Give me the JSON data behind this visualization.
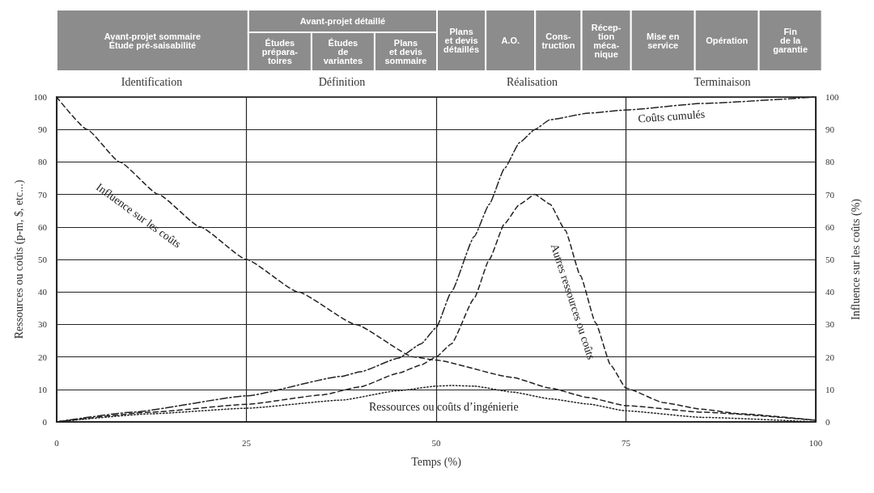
{
  "chart_data": {
    "type": "line",
    "xlabel": "Temps (%)",
    "ylabel": "Ressources ou coûts (p-m, $, etc...)",
    "y2label": "Influence sur les coûts (%)",
    "xlim": [
      0,
      100
    ],
    "xticks": [
      0,
      25,
      50,
      75,
      100
    ],
    "ylim": [
      0,
      100
    ],
    "yticks": [
      0,
      10,
      20,
      30,
      40,
      50,
      60,
      70,
      80,
      90,
      100
    ],
    "y2lim": [
      0,
      100
    ],
    "y2ticks": [
      0,
      10,
      20,
      30,
      40,
      50,
      60,
      70,
      80,
      90,
      100
    ],
    "grid": true,
    "series": [
      {
        "name": "Influence sur les coûts",
        "color": "#222222",
        "axis": "y2",
        "line_style": "dashed",
        "x": [
          0,
          4,
          8.3,
          13.4,
          18.9,
          25,
          31.8,
          39.4,
          47,
          50,
          60,
          65,
          70,
          75,
          85,
          100
        ],
        "values": [
          100,
          90,
          80,
          70,
          60,
          50,
          40,
          30,
          20,
          19,
          13.7,
          10.4,
          7.5,
          5,
          3,
          0.5
        ]
      },
      {
        "name": "Coûts cumulés",
        "color": "#222222",
        "line_style": "dashdot",
        "x": [
          0,
          10,
          25,
          37.5,
          40,
          45,
          48,
          50,
          52,
          55,
          57,
          59,
          61,
          63,
          65,
          70,
          75,
          85,
          100
        ],
        "values": [
          0,
          3,
          8,
          14,
          15.4,
          19.6,
          24,
          29,
          40,
          57,
          67,
          78,
          86,
          90,
          93,
          95,
          96,
          98,
          100
        ]
      },
      {
        "name": "Autres ressources ou coûts",
        "color": "#222222",
        "line_style": "dashed",
        "x": [
          0,
          12.5,
          25,
          35,
          40,
          45,
          48,
          50,
          52,
          55,
          57,
          59,
          61,
          63,
          65,
          67,
          69,
          71,
          73,
          75,
          80,
          85,
          90,
          100
        ],
        "values": [
          0,
          3,
          5.4,
          8.3,
          10.8,
          15,
          17.5,
          20,
          24,
          38,
          50,
          61,
          67,
          70,
          67,
          59,
          45,
          30.5,
          17.4,
          10.4,
          5.9,
          3.9,
          2.5,
          0.5
        ]
      },
      {
        "name": "Ressources ou coûts d’ingénierie",
        "color": "#222222",
        "line_style": "dotted",
        "x": [
          0,
          12.5,
          25,
          37.5,
          45,
          50,
          52,
          55,
          60,
          65,
          70,
          75,
          85,
          100
        ],
        "values": [
          0,
          2.5,
          4.2,
          6.7,
          9.6,
          11,
          11.2,
          11,
          9.2,
          7.1,
          5.5,
          3.4,
          1.4,
          0
        ]
      }
    ],
    "annotations": [
      "Avant-projet sommaire\nÉtude pré-saisabilité",
      "Avant-projet détaillé",
      "Études\nprépara-\ntoires",
      "Études\nde\nvariantes",
      "Plans\net devis\nsommaire",
      "Plans\net devis\ndétaillés",
      "A.O.",
      "Cons-\ntruction",
      "Récep-\ntion\nméca-\nnique",
      "Mise en\nservice",
      "Opération",
      "Fin\nde la\ngarantie",
      "Identification",
      "Définition",
      "Réalisation",
      "Terminaison"
    ]
  }
}
